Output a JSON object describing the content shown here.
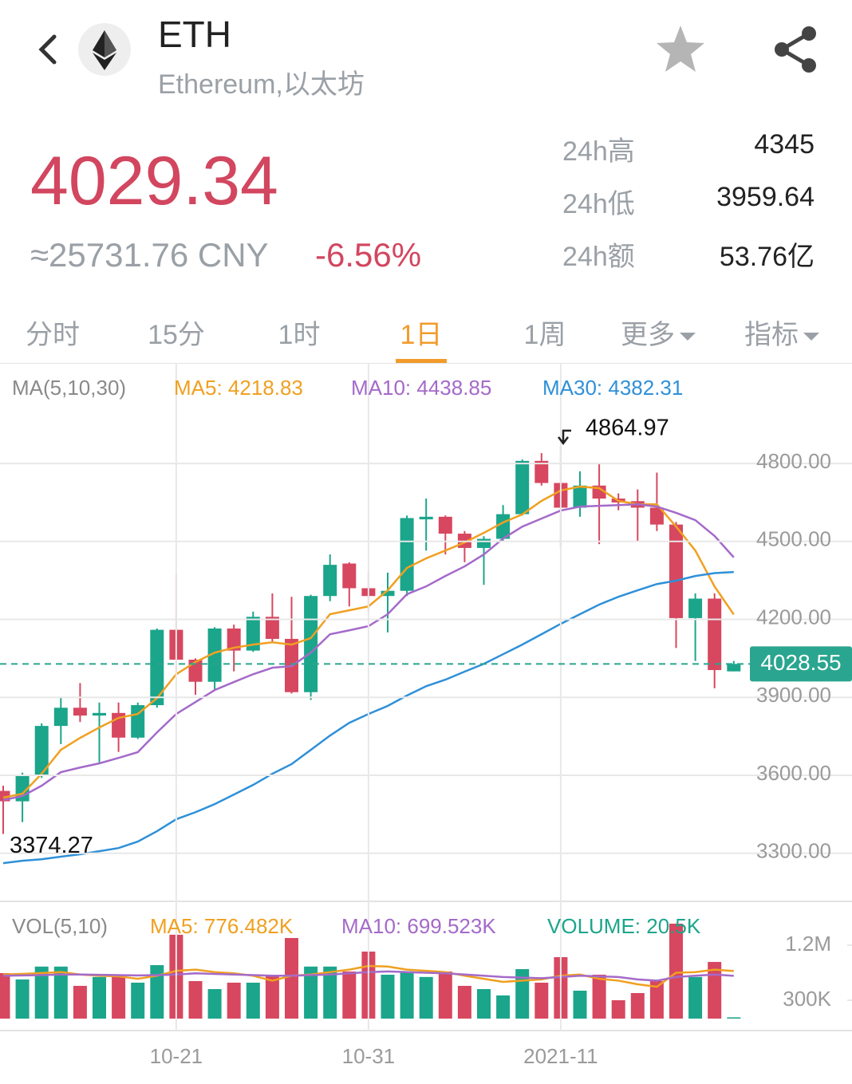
{
  "header": {
    "title": "ETH",
    "subtitle": "Ethereum,以太坊"
  },
  "quote": {
    "price": 4029.34,
    "cny": "≈25731.76 CNY",
    "change": "-6.56%",
    "stats": [
      {
        "label": "24h高",
        "value": 4345
      },
      {
        "label": "24h低",
        "value": 3959.64
      },
      {
        "label": "24h额",
        "value": "53.76亿"
      }
    ]
  },
  "tabs": {
    "items": [
      "分时",
      "15分",
      "1时",
      "1日",
      "1周",
      "更多",
      "指标"
    ],
    "active": 3
  },
  "chart_data": {
    "type": "candlestick",
    "categories": [
      null,
      null,
      null,
      null,
      null,
      null,
      null,
      null,
      null,
      "10-21",
      null,
      null,
      null,
      null,
      null,
      null,
      null,
      null,
      null,
      "10-31",
      null,
      null,
      null,
      null,
      null,
      null,
      null,
      null,
      null,
      "2021-11",
      null,
      null,
      null,
      null,
      null,
      null,
      null,
      null,
      null
    ],
    "open": [
      3540,
      3500,
      3600,
      3790,
      3860,
      3830,
      3840,
      3745,
      3870,
      4160,
      4045,
      3960,
      4165,
      4080,
      4210,
      4125,
      3920,
      4290,
      4415,
      4320,
      4290,
      4310,
      4585,
      4595,
      4530,
      4475,
      4510,
      4605,
      4810,
      4725,
      4630,
      4715,
      4665,
      4655,
      4630,
      4565,
      4205,
      4280,
      4000
    ],
    "high": [
      3560,
      3610,
      3800,
      3900,
      3955,
      3880,
      3880,
      3880,
      4165,
      4373,
      4050,
      4170,
      4180,
      4230,
      4300,
      4287,
      4295,
      4450,
      4420,
      4380,
      4380,
      4600,
      4665,
      4600,
      4540,
      4520,
      4640,
      4815,
      4840,
      4864.97,
      4770,
      4800,
      4685,
      4700,
      4765,
      4575,
      4300,
      4300,
      4040
    ],
    "low": [
      3374.27,
      3420,
      3590,
      3720,
      3805,
      3650,
      3690,
      3740,
      3860,
      3990,
      3910,
      3930,
      4000,
      4075,
      4110,
      3915,
      3890,
      4270,
      4250,
      4230,
      4150,
      4290,
      4465,
      4450,
      4420,
      4333,
      4500,
      4600,
      4715,
      4480,
      4595,
      4490,
      4620,
      4500,
      4540,
      4090,
      4040,
      3935,
      4000
    ],
    "close": [
      3500,
      3600,
      3790,
      3860,
      3830,
      3840,
      3745,
      3870,
      4160,
      4045,
      3960,
      4165,
      4080,
      4210,
      4125,
      3920,
      4290,
      4410,
      4320,
      4290,
      4310,
      4590,
      4595,
      4530,
      4475,
      4510,
      4605,
      4810,
      4725,
      4630,
      4715,
      4665,
      4650,
      4630,
      4565,
      4205,
      4280,
      4005,
      4028.55
    ],
    "up_color": "#1ba58b",
    "down_color": "#d7475f",
    "ylim": [
      3115,
      5187
    ],
    "yticks": [
      {
        "value": 3300,
        "label": "3300.00"
      },
      {
        "value": 3600,
        "label": "3600.00"
      },
      {
        "value": 3900,
        "label": "3900.00"
      },
      {
        "value": 4200,
        "label": "4200.00"
      },
      {
        "value": 4500,
        "label": "4500.00"
      },
      {
        "value": 4800,
        "label": "4800.00"
      }
    ],
    "last_price": 4028.55,
    "last_color": "#2aa58f",
    "ma_title": "MA(5,10,30)",
    "ma": [
      {
        "name": "MA5",
        "label": "MA5: 4218.83",
        "color": "#f0a020",
        "values": [
          3514,
          3529,
          3606,
          3698,
          3744,
          3784,
          3821,
          3836,
          3897,
          3989,
          4036,
          4072,
          4091,
          4103,
          4112,
          4103,
          4128,
          4220,
          4235,
          4250,
          4312,
          4398,
          4435,
          4465,
          4496,
          4533,
          4573,
          4604,
          4656,
          4696,
          4711,
          4705,
          4656,
          4643,
          4643,
          4557,
          4465,
          4327,
          4218.83
        ]
      },
      {
        "name": "MA10",
        "label": "MA10: 4438.85",
        "color": "#a46ac9",
        "values": [
          3505,
          3520,
          3560,
          3612,
          3630,
          3646,
          3667,
          3689,
          3765,
          3836,
          3882,
          3928,
          3959,
          3989,
          4014,
          4020,
          4072,
          4143,
          4158,
          4174,
          4220,
          4297,
          4327,
          4367,
          4404,
          4450,
          4511,
          4557,
          4588,
          4619,
          4634,
          4637,
          4640,
          4643,
          4634,
          4610,
          4582,
          4521,
          4438.85
        ]
      },
      {
        "name": "MA30",
        "label": "MA30: 4382.31",
        "color": "#2f90d8",
        "values": [
          3262,
          3271,
          3277,
          3287,
          3296,
          3308,
          3320,
          3345,
          3385,
          3431,
          3458,
          3489,
          3526,
          3563,
          3606,
          3643,
          3698,
          3753,
          3802,
          3836,
          3867,
          3907,
          3943,
          3968,
          3999,
          4029,
          4066,
          4103,
          4143,
          4183,
          4220,
          4257,
          4287,
          4312,
          4336,
          4349,
          4367,
          4378,
          4382.31
        ]
      }
    ],
    "volume": {
      "title": "VOL(5,10)",
      "ylim": [
        0,
        1916000
      ],
      "yticks": [
        {
          "value": 300000,
          "label": "300K"
        },
        {
          "value": 1200000,
          "label": "1.2M"
        }
      ],
      "values": [
        743000,
        640000,
        850000,
        850000,
        535000,
        680000,
        717000,
        587000,
        873000,
        1370000,
        613000,
        482000,
        587000,
        587000,
        717000,
        1317000,
        850000,
        850000,
        770000,
        1095000,
        717000,
        770000,
        680000,
        770000,
        535000,
        482000,
        378000,
        808000,
        587000,
        1004000,
        456000,
        717000,
        300000,
        417000,
        613000,
        1551000,
        680000,
        926000,
        20500
      ],
      "ma": [
        {
          "name": "MA5",
          "label": "MA5: 776.482K",
          "color": "#f0a020",
          "values": [
            720000,
            730000,
            745000,
            760000,
            720000,
            700000,
            690000,
            650000,
            700000,
            780000,
            800000,
            760000,
            740000,
            700000,
            620000,
            700000,
            720000,
            760000,
            800000,
            860000,
            850000,
            800000,
            780000,
            760000,
            700000,
            650000,
            600000,
            620000,
            640000,
            700000,
            720000,
            650000,
            620000,
            560000,
            520000,
            750000,
            760000,
            800000,
            776482
          ]
        },
        {
          "name": "MA10",
          "label": "MA10: 699.523K",
          "color": "#a46ac9",
          "values": [
            700000,
            705000,
            710000,
            720000,
            720000,
            715000,
            710000,
            705000,
            710000,
            720000,
            740000,
            730000,
            720000,
            710000,
            700000,
            700000,
            710000,
            720000,
            740000,
            760000,
            770000,
            760000,
            750000,
            740000,
            720000,
            700000,
            680000,
            670000,
            660000,
            680000,
            700000,
            690000,
            680000,
            640000,
            620000,
            680000,
            700000,
            720000,
            699523
          ]
        }
      ],
      "current_label": "VOLUME: 20.5K",
      "current_color": "#1ba58b"
    }
  }
}
